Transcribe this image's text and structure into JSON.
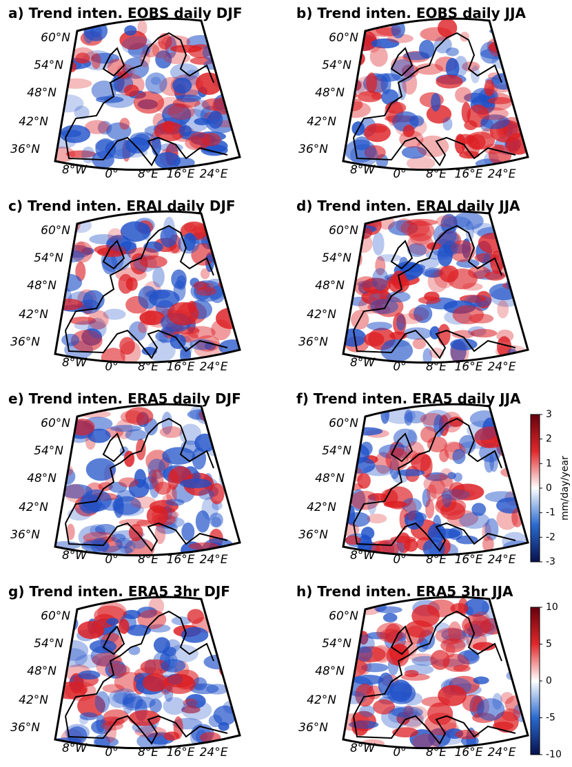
{
  "panels": [
    {
      "title": "a) Trend inten. EOBS daily DJF"
    },
    {
      "title": "b) Trend inten. EOBS daily JJA"
    },
    {
      "title": "c) Trend inten. ERAI daily DJF"
    },
    {
      "title": "d) Trend inten. ERAI daily JJA"
    },
    {
      "title": "e) Trend inten. ERA5 daily DJF"
    },
    {
      "title": "f) Trend inten. ERA5 daily JJA"
    },
    {
      "title": "g) Trend inten. ERA5 3hr DJF"
    },
    {
      "title": "h) Trend inten. ERA5 3hr JJA"
    }
  ],
  "lat_labels": [
    "60°N",
    "54°N",
    "48°N",
    "42°N",
    "36°N"
  ],
  "lon_labels": [
    "8°W",
    "0°",
    "8°E",
    "16°E",
    "24°E"
  ],
  "colorbars": [
    {
      "label": "mm/day/year",
      "ticks": [
        3,
        2,
        1,
        0,
        -1,
        -2,
        -3
      ]
    },
    {
      "ticks": [
        10,
        5,
        0,
        -5,
        -10
      ]
    }
  ]
}
